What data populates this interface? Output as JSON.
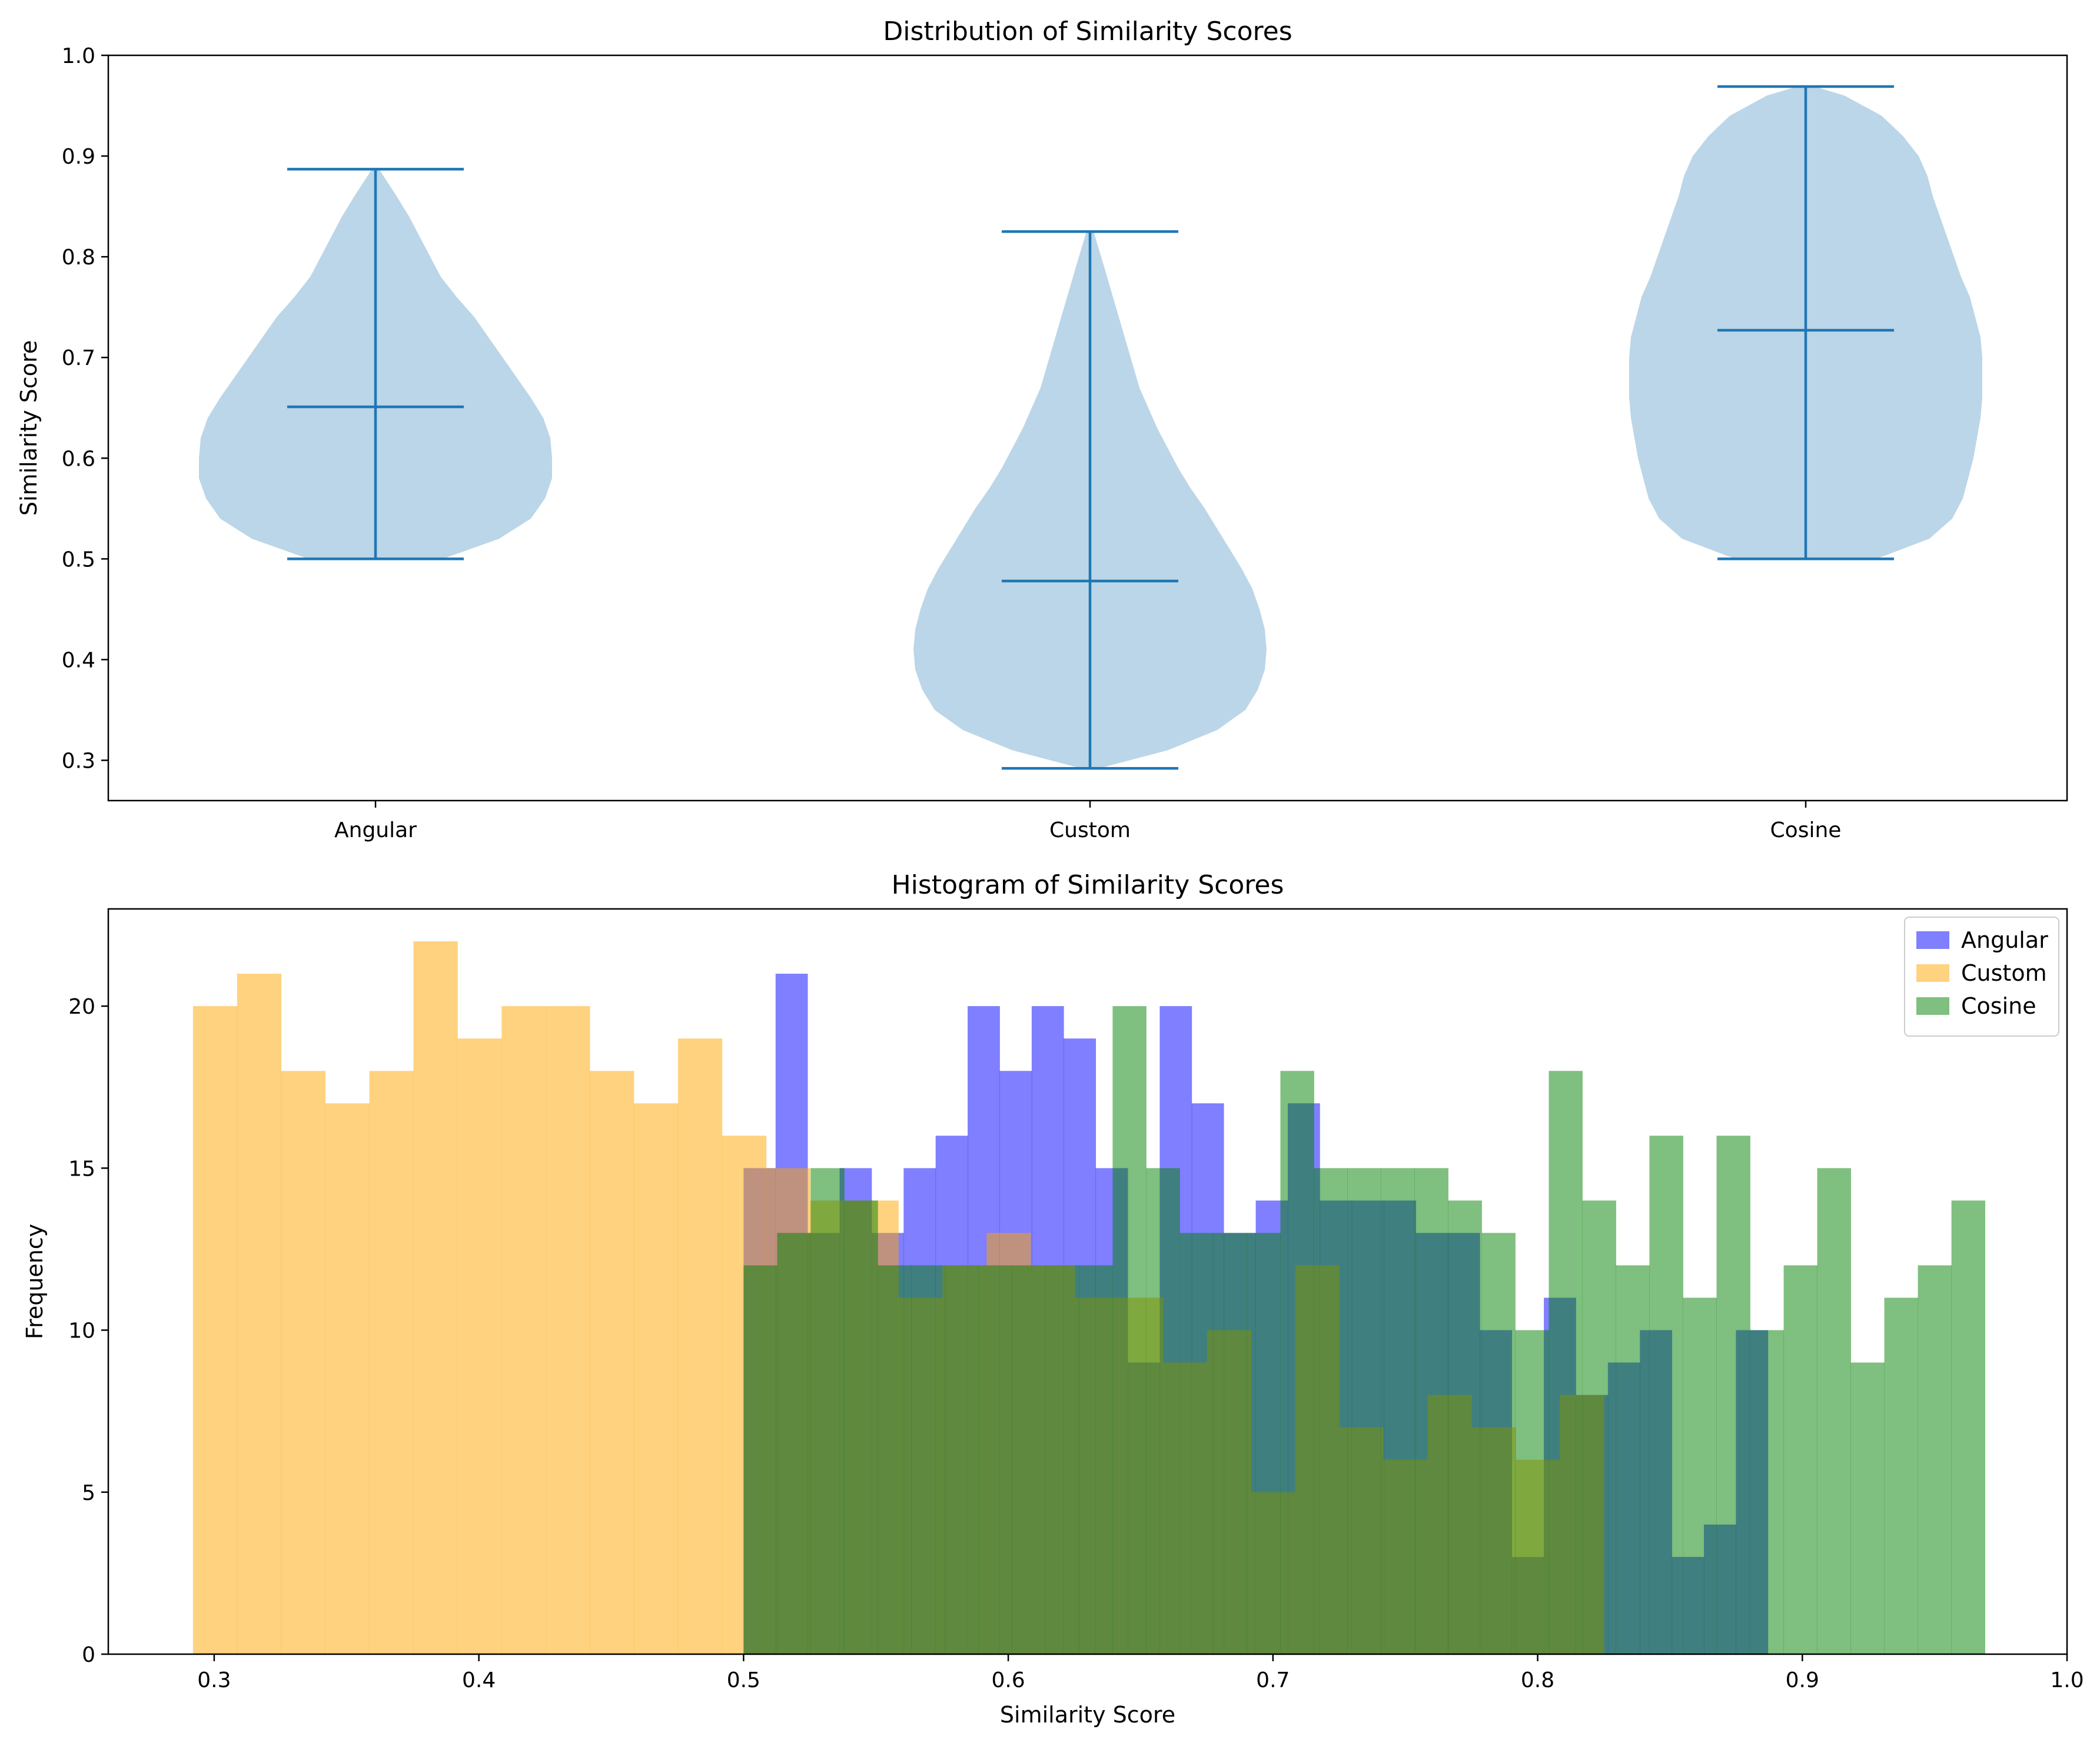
{
  "colors": {
    "violin_body": "#1f77b4",
    "violin_lines": "#1f77b4",
    "angular": "#0000ff",
    "custom": "#ffa500",
    "cosine": "#008000"
  },
  "chart_data": [
    {
      "type": "violin",
      "title": "Distribution of Similarity Scores",
      "xlabel": "",
      "ylabel": "Similarity Score",
      "ylim": [
        0.26,
        1.0
      ],
      "yticks": [
        "0.3",
        "0.4",
        "0.5",
        "0.6",
        "0.7",
        "0.8",
        "0.9",
        "1.0"
      ],
      "categories": [
        "Angular",
        "Custom",
        "Cosine"
      ],
      "series": [
        {
          "name": "Angular",
          "min": 0.5,
          "max": 0.887,
          "mean": 0.651,
          "profile": [
            [
              0.5,
              0.38
            ],
            [
              0.52,
              0.7
            ],
            [
              0.54,
              0.88
            ],
            [
              0.56,
              0.96
            ],
            [
              0.58,
              1.0
            ],
            [
              0.6,
              1.0
            ],
            [
              0.62,
              0.99
            ],
            [
              0.64,
              0.95
            ],
            [
              0.66,
              0.88
            ],
            [
              0.68,
              0.8
            ],
            [
              0.7,
              0.72
            ],
            [
              0.72,
              0.64
            ],
            [
              0.74,
              0.56
            ],
            [
              0.76,
              0.46
            ],
            [
              0.78,
              0.37
            ],
            [
              0.8,
              0.31
            ],
            [
              0.82,
              0.25
            ],
            [
              0.84,
              0.19
            ],
            [
              0.86,
              0.12
            ],
            [
              0.887,
              0.02
            ]
          ]
        },
        {
          "name": "Custom",
          "min": 0.292,
          "max": 0.825,
          "mean": 0.478,
          "profile": [
            [
              0.292,
              0.05
            ],
            [
              0.31,
              0.44
            ],
            [
              0.33,
              0.72
            ],
            [
              0.35,
              0.88
            ],
            [
              0.37,
              0.95
            ],
            [
              0.39,
              0.99
            ],
            [
              0.41,
              1.0
            ],
            [
              0.43,
              0.99
            ],
            [
              0.45,
              0.96
            ],
            [
              0.47,
              0.92
            ],
            [
              0.49,
              0.86
            ],
            [
              0.51,
              0.79
            ],
            [
              0.53,
              0.72
            ],
            [
              0.55,
              0.65
            ],
            [
              0.57,
              0.57
            ],
            [
              0.59,
              0.5
            ],
            [
              0.61,
              0.44
            ],
            [
              0.63,
              0.38
            ],
            [
              0.65,
              0.33
            ],
            [
              0.67,
              0.28
            ],
            [
              0.7,
              0.23
            ],
            [
              0.73,
              0.18
            ],
            [
              0.76,
              0.13
            ],
            [
              0.79,
              0.08
            ],
            [
              0.825,
              0.02
            ]
          ]
        },
        {
          "name": "Cosine",
          "min": 0.5,
          "max": 0.969,
          "mean": 0.727,
          "profile": [
            [
              0.5,
              0.4
            ],
            [
              0.52,
              0.7
            ],
            [
              0.54,
              0.83
            ],
            [
              0.56,
              0.89
            ],
            [
              0.58,
              0.92
            ],
            [
              0.6,
              0.95
            ],
            [
              0.62,
              0.97
            ],
            [
              0.64,
              0.99
            ],
            [
              0.66,
              1.0
            ],
            [
              0.68,
              1.0
            ],
            [
              0.7,
              1.0
            ],
            [
              0.72,
              0.99
            ],
            [
              0.74,
              0.96
            ],
            [
              0.76,
              0.93
            ],
            [
              0.78,
              0.88
            ],
            [
              0.8,
              0.84
            ],
            [
              0.82,
              0.8
            ],
            [
              0.84,
              0.76
            ],
            [
              0.86,
              0.72
            ],
            [
              0.88,
              0.69
            ],
            [
              0.9,
              0.64
            ],
            [
              0.92,
              0.55
            ],
            [
              0.94,
              0.43
            ],
            [
              0.96,
              0.22
            ],
            [
              0.969,
              0.05
            ]
          ]
        }
      ]
    },
    {
      "type": "histogram",
      "title": "Histogram of Similarity Scores",
      "xlabel": "Similarity Score",
      "ylabel": "Frequency",
      "xlim": [
        0.26,
        1.0
      ],
      "ylim": [
        0,
        23
      ],
      "xticks": [
        "0.3",
        "0.4",
        "0.5",
        "0.6",
        "0.7",
        "0.8",
        "0.9",
        "1.0"
      ],
      "yticks": [
        "0",
        "5",
        "10",
        "15",
        "20"
      ],
      "legend_position": "top-right",
      "series": [
        {
          "name": "Angular",
          "range": [
            0.5,
            0.887
          ],
          "counts": [
            15,
            21,
            13,
            15,
            13,
            15,
            16,
            20,
            18,
            20,
            19,
            15,
            9,
            20,
            17,
            13,
            14,
            17,
            14,
            14,
            14,
            13,
            13,
            10,
            3,
            11,
            8,
            9,
            10,
            3,
            4,
            10
          ]
        },
        {
          "name": "Custom",
          "range": [
            0.292,
            0.825
          ],
          "counts": [
            20,
            21,
            18,
            17,
            18,
            22,
            19,
            20,
            20,
            18,
            17,
            19,
            16,
            15,
            14,
            14,
            11,
            12,
            13,
            12,
            11,
            11,
            9,
            10,
            5,
            12,
            7,
            6,
            8,
            7,
            6,
            8
          ]
        },
        {
          "name": "Cosine",
          "range": [
            0.5,
            0.969
          ],
          "counts": [
            12,
            13,
            15,
            14,
            12,
            12,
            12,
            12,
            12,
            12,
            12,
            20,
            15,
            13,
            13,
            13,
            18,
            15,
            15,
            15,
            15,
            14,
            13,
            10,
            18,
            14,
            12,
            16,
            11,
            16,
            10,
            12,
            15,
            9,
            11,
            12,
            14
          ]
        }
      ]
    }
  ]
}
